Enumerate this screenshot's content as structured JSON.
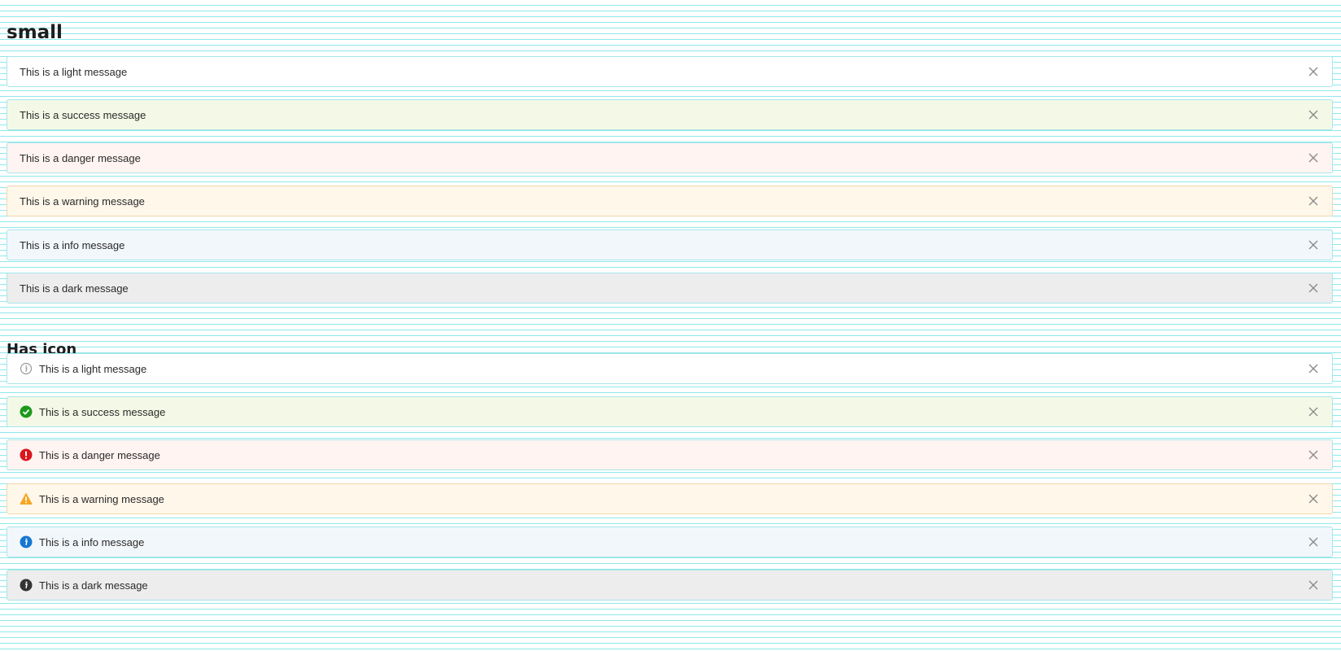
{
  "sections": {
    "small": {
      "heading": "small",
      "messages": [
        {
          "type": "light",
          "text": "This is a light message"
        },
        {
          "type": "success",
          "text": "This is a success message"
        },
        {
          "type": "danger",
          "text": "This is a danger message"
        },
        {
          "type": "warning",
          "text": "This is a warning message"
        },
        {
          "type": "info",
          "text": "This is a info message"
        },
        {
          "type": "dark",
          "text": "This is a dark message"
        }
      ]
    },
    "has_icon": {
      "heading": "Has icon",
      "messages": [
        {
          "type": "light",
          "text": "This is a light message",
          "icon": "info-outline-icon"
        },
        {
          "type": "success",
          "text": "This is a success message",
          "icon": "check-circle-icon"
        },
        {
          "type": "danger",
          "text": "This is a danger message",
          "icon": "exclamation-circle-icon"
        },
        {
          "type": "warning",
          "text": "This is a warning message",
          "icon": "warning-triangle-icon"
        },
        {
          "type": "info",
          "text": "This is a info message",
          "icon": "info-circle-icon"
        },
        {
          "type": "dark",
          "text": "This is a dark message",
          "icon": "info-circle-icon"
        }
      ]
    }
  },
  "colors": {
    "success_icon": "#1a9a1a",
    "danger_icon": "#d9161d",
    "warning_icon": "#f5a623",
    "info_icon": "#1677d2",
    "dark_icon": "#333333",
    "light_icon": "#999999",
    "close_icon": "#888888"
  }
}
